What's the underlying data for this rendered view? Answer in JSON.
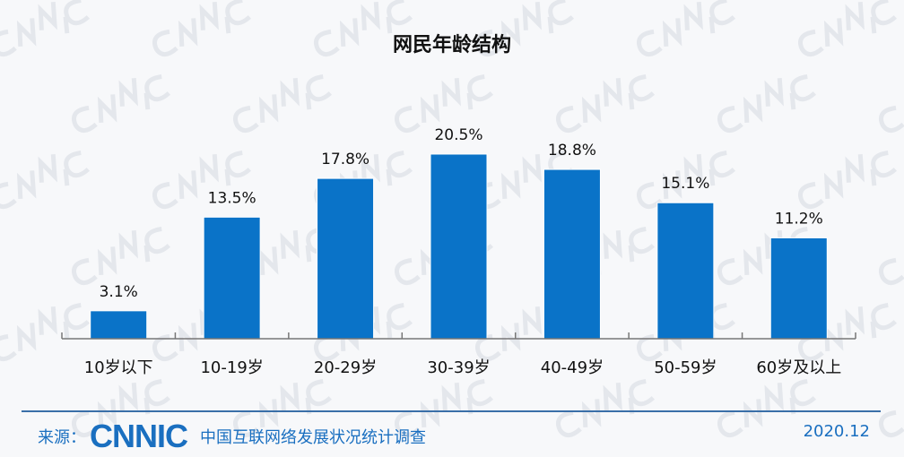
{
  "chart_data": {
    "type": "bar",
    "title": "网民年龄结构",
    "categories": [
      "10岁以下",
      "10-19岁",
      "20-29岁",
      "30-39岁",
      "40-49岁",
      "50-59岁",
      "60岁及以上"
    ],
    "values": [
      3.1,
      13.5,
      17.8,
      20.5,
      18.8,
      15.1,
      11.2
    ],
    "data_labels": [
      "3.1%",
      "13.5%",
      "17.8%",
      "20.5%",
      "18.8%",
      "15.1%",
      "11.2%"
    ],
    "unit": "%",
    "ylim": [
      0,
      22
    ],
    "grid": false,
    "bar_color": "#0a73c8"
  },
  "footer": {
    "source_label": "来源：",
    "logo": "CNNIC",
    "survey_name": "中国互联网络发展状况统计调查",
    "date": "2020.12"
  },
  "watermark": "CNNIC"
}
